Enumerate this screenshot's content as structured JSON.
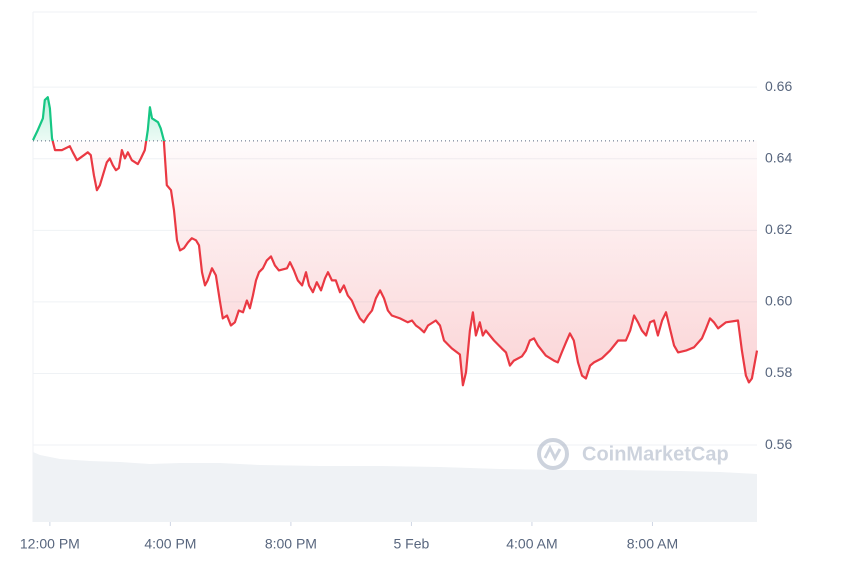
{
  "chart_data": {
    "type": "line",
    "watermark": "CoinMarketCap",
    "x": [
      -0.56,
      -0.4,
      -0.23,
      -0.17,
      -0.07,
      0.0,
      0.07,
      0.17,
      0.4,
      0.66,
      0.76,
      0.9,
      1.13,
      1.26,
      1.36,
      1.46,
      1.56,
      1.66,
      1.76,
      1.89,
      1.99,
      2.09,
      2.19,
      2.29,
      2.39,
      2.49,
      2.59,
      2.72,
      2.92,
      3.02,
      3.15,
      3.25,
      3.32,
      3.39,
      3.59,
      3.68,
      3.78,
      3.88,
      4.02,
      4.12,
      4.22,
      4.32,
      4.45,
      4.58,
      4.71,
      4.85,
      4.95,
      5.05,
      5.15,
      5.24,
      5.38,
      5.51,
      5.64,
      5.74,
      5.88,
      6.01,
      6.14,
      6.27,
      6.41,
      6.54,
      6.64,
      6.74,
      6.84,
      6.94,
      7.07,
      7.2,
      7.34,
      7.47,
      7.6,
      7.87,
      7.97,
      8.1,
      8.23,
      8.37,
      8.5,
      8.6,
      8.73,
      8.86,
      9.0,
      9.13,
      9.23,
      9.36,
      9.49,
      9.63,
      9.76,
      9.89,
      10.02,
      10.16,
      10.29,
      10.42,
      10.56,
      10.69,
      10.82,
      10.96,
      11.09,
      11.22,
      11.35,
      11.62,
      11.88,
      12.02,
      12.15,
      12.28,
      12.42,
      12.55,
      12.81,
      12.95,
      13.08,
      13.34,
      13.61,
      13.71,
      13.81,
      13.94,
      14.04,
      14.14,
      14.27,
      14.37,
      14.47,
      14.74,
      15.0,
      15.14,
      15.27,
      15.4,
      15.67,
      15.8,
      15.93,
      16.07,
      16.2,
      16.46,
      16.73,
      16.86,
      16.99,
      17.13,
      17.26,
      17.39,
      17.53,
      17.66,
      17.79,
      17.93,
      18.06,
      18.32,
      18.59,
      18.86,
      19.12,
      19.26,
      19.39,
      19.52,
      19.65,
      19.79,
      19.92,
      20.05,
      20.18,
      20.32,
      20.45,
      20.58,
      20.72,
      20.85,
      21.11,
      21.38,
      21.64,
      21.78,
      21.91,
      22.04,
      22.18,
      22.44,
      22.84,
      22.97,
      23.1,
      23.2,
      23.3,
      23.47
    ],
    "values": [
      0.6452,
      0.648,
      0.6513,
      0.6564,
      0.6572,
      0.6541,
      0.6457,
      0.6424,
      0.6424,
      0.6435,
      0.6418,
      0.6396,
      0.641,
      0.6418,
      0.641,
      0.6354,
      0.6312,
      0.6326,
      0.6354,
      0.639,
      0.6401,
      0.6382,
      0.6368,
      0.6374,
      0.6424,
      0.6401,
      0.6418,
      0.6396,
      0.6385,
      0.6401,
      0.6424,
      0.648,
      0.6544,
      0.6513,
      0.6502,
      0.6485,
      0.6452,
      0.6326,
      0.6312,
      0.6256,
      0.6172,
      0.6144,
      0.615,
      0.6166,
      0.6178,
      0.6172,
      0.6158,
      0.6083,
      0.6046,
      0.606,
      0.6094,
      0.6074,
      0.6004,
      0.5954,
      0.5962,
      0.5934,
      0.5943,
      0.5976,
      0.5971,
      0.6004,
      0.5982,
      0.6018,
      0.606,
      0.6083,
      0.6094,
      0.6116,
      0.6127,
      0.6102,
      0.6088,
      0.6094,
      0.6111,
      0.6088,
      0.606,
      0.6046,
      0.6083,
      0.6046,
      0.6027,
      0.6055,
      0.6032,
      0.6066,
      0.6083,
      0.606,
      0.606,
      0.6027,
      0.6046,
      0.6018,
      0.6004,
      0.5976,
      0.5954,
      0.5943,
      0.5962,
      0.5976,
      0.601,
      0.6032,
      0.601,
      0.5976,
      0.5962,
      0.5954,
      0.5943,
      0.5948,
      0.5934,
      0.5926,
      0.5915,
      0.5934,
      0.5948,
      0.5934,
      0.5892,
      0.587,
      0.5853,
      0.5767,
      0.5803,
      0.592,
      0.5971,
      0.5906,
      0.5943,
      0.5906,
      0.592,
      0.5892,
      0.587,
      0.5859,
      0.5822,
      0.5836,
      0.5848,
      0.5864,
      0.5892,
      0.5898,
      0.5878,
      0.585,
      0.5836,
      0.5831,
      0.5859,
      0.5887,
      0.5912,
      0.5892,
      0.5831,
      0.5794,
      0.5786,
      0.5822,
      0.5831,
      0.5842,
      0.5864,
      0.5892,
      0.5892,
      0.592,
      0.5962,
      0.5943,
      0.592,
      0.5906,
      0.5943,
      0.5948,
      0.5906,
      0.5948,
      0.5971,
      0.5926,
      0.5878,
      0.5859,
      0.5864,
      0.5873,
      0.5898,
      0.5926,
      0.5954,
      0.5943,
      0.5926,
      0.5943,
      0.5948,
      0.5864,
      0.5794,
      0.5775,
      0.5786,
      0.5864
    ],
    "baseline": 0.645,
    "up_color": "#16c784",
    "down_color": "#ea3943",
    "xlim": [
      -0.56,
      23.47
    ],
    "xticks": [
      {
        "value": 0,
        "label": "12:00 PM"
      },
      {
        "value": 4,
        "label": "4:00 PM"
      },
      {
        "value": 8,
        "label": "8:00 PM"
      },
      {
        "value": 12,
        "label": "5 Feb"
      },
      {
        "value": 16,
        "label": "4:00 AM"
      },
      {
        "value": 20,
        "label": "8:00 AM"
      }
    ],
    "ylim": [
      0.5385,
      0.681
    ],
    "yticks": [
      0.56,
      0.58,
      {
        "value": 0.6,
        "label": "0.60"
      },
      0.62,
      0.64,
      0.66
    ],
    "grid": true
  }
}
